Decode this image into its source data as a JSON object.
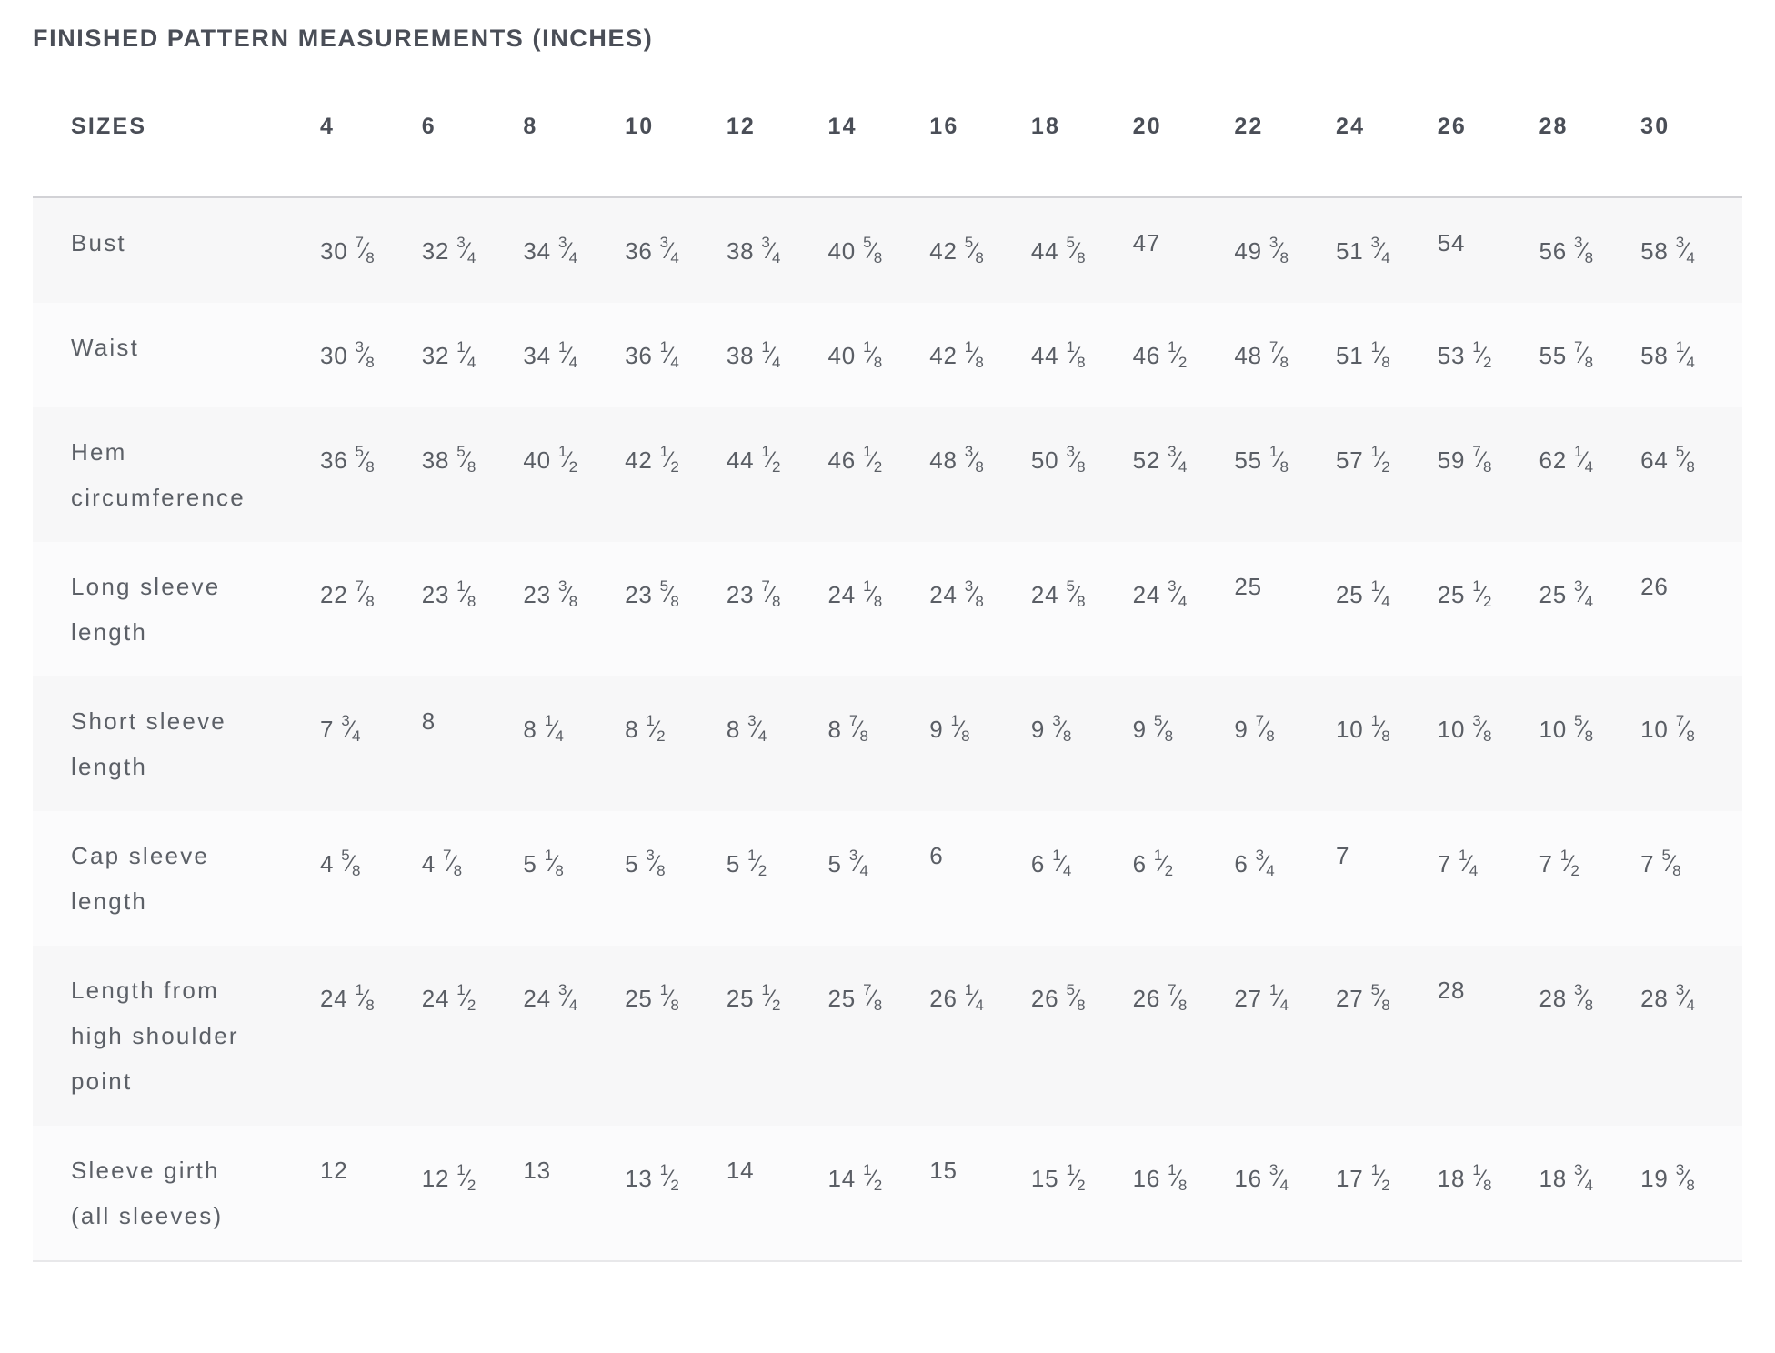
{
  "title": "FINISHED PATTERN MEASUREMENTS (INCHES)",
  "colors": {
    "heading_text": "#4a4e57",
    "body_text": "#5a5e65",
    "row_stripe_odd": "#f7f7f8",
    "row_stripe_even": "#fbfbfc",
    "border_top": "#d2d2d6",
    "border_bottom": "#e8e8ea",
    "page_background": "#ffffff"
  },
  "chart_data": {
    "type": "table",
    "title": "FINISHED PATTERN MEASUREMENTS (INCHES)",
    "units": "inches",
    "header": {
      "label": "SIZES",
      "sizes": [
        "4",
        "6",
        "8",
        "10",
        "12",
        "14",
        "16",
        "18",
        "20",
        "22",
        "24",
        "26",
        "28",
        "30"
      ]
    },
    "rows": [
      {
        "label": "Bust",
        "values": [
          "30 7/8",
          "32 3/4",
          "34 3/4",
          "36 3/4",
          "38 3/4",
          "40 5/8",
          "42 5/8",
          "44 5/8",
          "47",
          "49 3/8",
          "51 3/4",
          "54",
          "56 3/8",
          "58 3/4"
        ]
      },
      {
        "label": "Waist",
        "values": [
          "30 3/8",
          "32 1/4",
          "34 1/4",
          "36 1/4",
          "38 1/4",
          "40 1/8",
          "42 1/8",
          "44 1/8",
          "46 1/2",
          "48 7/8",
          "51 1/8",
          "53 1/2",
          "55 7/8",
          "58 1/4"
        ]
      },
      {
        "label": "Hem circumference",
        "values": [
          "36 5/8",
          "38 5/8",
          "40 1/2",
          "42 1/2",
          "44 1/2",
          "46 1/2",
          "48 3/8",
          "50 3/8",
          "52 3/4",
          "55 1/8",
          "57 1/2",
          "59 7/8",
          "62 1/4",
          "64 5/8"
        ]
      },
      {
        "label": "Long sleeve length",
        "values": [
          "22 7/8",
          "23 1/8",
          "23 3/8",
          "23 5/8",
          "23 7/8",
          "24 1/8",
          "24 3/8",
          "24 5/8",
          "24 3/4",
          "25",
          "25 1/4",
          "25 1/2",
          "25 3/4",
          "26"
        ]
      },
      {
        "label": "Short sleeve length",
        "values": [
          "7 3/4",
          "8",
          "8 1/4",
          "8 1/2",
          "8 3/4",
          "8 7/8",
          "9 1/8",
          "9 3/8",
          "9 5/8",
          "9 7/8",
          "10 1/8",
          "10 3/8",
          "10 5/8",
          "10 7/8"
        ]
      },
      {
        "label": "Cap sleeve length",
        "values": [
          "4 5/8",
          "4 7/8",
          "5 1/8",
          "5 3/8",
          "5 1/2",
          "5 3/4",
          "6",
          "6 1/4",
          "6 1/2",
          "6 3/4",
          "7",
          "7 1/4",
          "7 1/2",
          "7 5/8"
        ]
      },
      {
        "label": "Length from high shoulder point",
        "values": [
          "24 1/8",
          "24 1/2",
          "24 3/4",
          "25 1/8",
          "25 1/2",
          "25 7/8",
          "26 1/4",
          "26 5/8",
          "26 7/8",
          "27 1/4",
          "27 5/8",
          "28",
          "28 3/8",
          "28 3/4"
        ]
      },
      {
        "label": "Sleeve girth (all sleeves)",
        "values": [
          "12",
          "12 1/2",
          "13",
          "13 1/2",
          "14",
          "14 1/2",
          "15",
          "15 1/2",
          "16 1/8",
          "16 3/4",
          "17 1/2",
          "18 1/8",
          "18 3/4",
          "19 3/8"
        ]
      }
    ]
  }
}
